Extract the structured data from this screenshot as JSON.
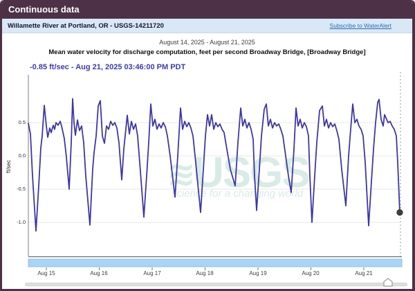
{
  "window": {
    "title": "Continuous data"
  },
  "site_bar": {
    "site_name": "Willamette River at Portland, OR - USGS-14211720",
    "subscribe_link": "Subscribe to WaterAlert"
  },
  "chart_header": {
    "date_range": "August 14, 2025 - August 21, 2025",
    "title": "Mean water velocity for discharge computation, feet per second Broadway Bridge, [Broadway Bridge]",
    "current_value": "-0.85 ft/sec - Aug 21, 2025 03:46:00 PM PDT"
  },
  "watermark": {
    "symbol": "≋",
    "text": "USGS",
    "tagline": "science for a changing world"
  },
  "colors": {
    "header_bg": "#4d3247",
    "site_bar_bg": "#d9e8f6",
    "link_blue": "#2a6db8",
    "accent_text": "#3a3ab8",
    "line": "#3c36a8",
    "grid": "#e7e7e7",
    "axis": "#9a9a9a",
    "watermark_green": "#d8ece5",
    "brush_blue": "#aad4f4",
    "end_dot": "#3f3f3f"
  },
  "chart_data": {
    "type": "line",
    "title": "Mean water velocity for discharge computation, feet per second Broadway Bridge, [Broadway Bridge]",
    "subtitle": "August 14, 2025 - August 21, 2025",
    "ylabel": "ft/sec",
    "xlabel": "",
    "ylim": [
      -1.5,
      1.2
    ],
    "grid": true,
    "legend": "none",
    "latest": {
      "value": -0.85,
      "units": "ft/sec",
      "time": "Aug 21, 2025 03:46:00 PM PDT"
    },
    "y_ticks": [
      {
        "label": "0.5",
        "value": 0.5
      },
      {
        "label": "0.0",
        "value": 0.0
      },
      {
        "label": "-0.5",
        "value": -0.5
      },
      {
        "label": "-1.0",
        "value": -1.0
      }
    ],
    "x_ticks": [
      {
        "label": "Aug 15"
      },
      {
        "label": "Aug 16"
      },
      {
        "label": "Aug 17"
      },
      {
        "label": "Aug 18"
      },
      {
        "label": "Aug 19"
      },
      {
        "label": "Aug 20"
      },
      {
        "label": "Aug 21"
      }
    ],
    "x_start": "August 14, 2025",
    "x_end": "August 21, 2025 03:46 PM PDT",
    "series": [
      {
        "name": "Mean water velocity (ft/sec)",
        "points": [
          [
            0.0,
            0.49
          ],
          [
            0.039,
            0.33
          ],
          [
            0.078,
            -0.3
          ],
          [
            0.144,
            -1.13
          ],
          [
            0.196,
            -0.45
          ],
          [
            0.235,
            0.12
          ],
          [
            0.261,
            0.3
          ],
          [
            0.301,
            0.76
          ],
          [
            0.34,
            0.45
          ],
          [
            0.366,
            0.28
          ],
          [
            0.405,
            0.42
          ],
          [
            0.431,
            0.35
          ],
          [
            0.471,
            0.46
          ],
          [
            0.497,
            0.4
          ],
          [
            0.523,
            0.5
          ],
          [
            0.562,
            0.46
          ],
          [
            0.601,
            0.52
          ],
          [
            0.628,
            0.45
          ],
          [
            0.68,
            0.26
          ],
          [
            0.719,
            -0.02
          ],
          [
            0.771,
            -0.5
          ],
          [
            0.81,
            0.2
          ],
          [
            0.837,
            0.86
          ],
          [
            0.863,
            0.5
          ],
          [
            0.889,
            0.31
          ],
          [
            0.928,
            0.54
          ],
          [
            0.967,
            0.38
          ],
          [
            1.007,
            0.45
          ],
          [
            1.046,
            0.2
          ],
          [
            1.085,
            -0.3
          ],
          [
            1.163,
            -1.04
          ],
          [
            1.216,
            -0.2
          ],
          [
            1.242,
            0.05
          ],
          [
            1.281,
            0.3
          ],
          [
            1.32,
            0.75
          ],
          [
            1.36,
            0.83
          ],
          [
            1.399,
            0.3
          ],
          [
            1.438,
            0.19
          ],
          [
            1.477,
            0.45
          ],
          [
            1.516,
            0.4
          ],
          [
            1.556,
            0.52
          ],
          [
            1.595,
            0.46
          ],
          [
            1.634,
            0.5
          ],
          [
            1.673,
            0.42
          ],
          [
            1.713,
            0.2
          ],
          [
            1.765,
            -0.36
          ],
          [
            1.804,
            0.1
          ],
          [
            1.869,
            0.61
          ],
          [
            1.909,
            0.33
          ],
          [
            1.948,
            0.52
          ],
          [
            1.987,
            0.4
          ],
          [
            2.026,
            0.48
          ],
          [
            2.065,
            0.3
          ],
          [
            2.105,
            -0.1
          ],
          [
            2.183,
            -0.92
          ],
          [
            2.235,
            -0.3
          ],
          [
            2.275,
            0.2
          ],
          [
            2.314,
            0.78
          ],
          [
            2.353,
            0.45
          ],
          [
            2.392,
            0.55
          ],
          [
            2.431,
            0.4
          ],
          [
            2.471,
            0.48
          ],
          [
            2.51,
            0.42
          ],
          [
            2.549,
            0.5
          ],
          [
            2.588,
            0.44
          ],
          [
            2.627,
            0.3
          ],
          [
            2.68,
            0.0
          ],
          [
            2.771,
            -0.62
          ],
          [
            2.824,
            0.0
          ],
          [
            2.876,
            0.72
          ],
          [
            2.915,
            0.4
          ],
          [
            2.954,
            0.52
          ],
          [
            2.993,
            0.44
          ],
          [
            3.033,
            0.5
          ],
          [
            3.072,
            0.42
          ],
          [
            3.111,
            0.3
          ],
          [
            3.163,
            -0.1
          ],
          [
            3.255,
            -0.85
          ],
          [
            3.307,
            -0.2
          ],
          [
            3.346,
            0.3
          ],
          [
            3.386,
            0.62
          ],
          [
            3.425,
            0.45
          ],
          [
            3.464,
            0.62
          ],
          [
            3.503,
            0.4
          ],
          [
            3.542,
            0.5
          ],
          [
            3.582,
            0.44
          ],
          [
            3.621,
            0.48
          ],
          [
            3.66,
            0.4
          ],
          [
            3.699,
            0.35
          ],
          [
            3.752,
            0.1
          ],
          [
            3.817,
            -0.2
          ],
          [
            3.908,
            -0.45
          ],
          [
            3.961,
            0.2
          ],
          [
            4.013,
            0.72
          ],
          [
            4.052,
            0.45
          ],
          [
            4.091,
            0.55
          ],
          [
            4.131,
            0.42
          ],
          [
            4.17,
            0.5
          ],
          [
            4.209,
            0.4
          ],
          [
            4.248,
            0.25
          ],
          [
            4.274,
            -0.3
          ],
          [
            4.314,
            -0.82
          ],
          [
            4.366,
            -0.2
          ],
          [
            4.405,
            0.3
          ],
          [
            4.457,
            0.7
          ],
          [
            4.497,
            0.78
          ],
          [
            4.536,
            0.45
          ],
          [
            4.575,
            0.55
          ],
          [
            4.614,
            0.42
          ],
          [
            4.653,
            0.5
          ],
          [
            4.693,
            0.45
          ],
          [
            4.732,
            0.48
          ],
          [
            4.771,
            0.4
          ],
          [
            4.81,
            0.3
          ],
          [
            4.863,
            0.0
          ],
          [
            4.915,
            -0.3
          ],
          [
            4.967,
            -0.55
          ],
          [
            5.019,
            0.1
          ],
          [
            5.059,
            0.72
          ],
          [
            5.098,
            0.45
          ],
          [
            5.137,
            0.55
          ],
          [
            5.176,
            0.42
          ],
          [
            5.216,
            0.5
          ],
          [
            5.255,
            0.44
          ],
          [
            5.294,
            0.3
          ],
          [
            5.32,
            -0.3
          ],
          [
            5.359,
            -1.0
          ],
          [
            5.412,
            -0.3
          ],
          [
            5.451,
            0.2
          ],
          [
            5.503,
            0.68
          ],
          [
            5.556,
            0.75
          ],
          [
            5.595,
            0.45
          ],
          [
            5.634,
            0.55
          ],
          [
            5.673,
            0.42
          ],
          [
            5.712,
            0.5
          ],
          [
            5.752,
            0.44
          ],
          [
            5.791,
            0.48
          ],
          [
            5.83,
            0.38
          ],
          [
            5.869,
            0.25
          ],
          [
            5.922,
            -0.2
          ],
          [
            6.0,
            -0.75
          ],
          [
            6.052,
            0.0
          ],
          [
            6.091,
            0.4
          ],
          [
            6.131,
            0.78
          ],
          [
            6.17,
            0.5
          ],
          [
            6.209,
            0.55
          ],
          [
            6.248,
            0.45
          ],
          [
            6.287,
            0.4
          ],
          [
            6.327,
            0.3
          ],
          [
            6.366,
            -0.1
          ],
          [
            6.431,
            -1.05
          ],
          [
            6.483,
            -0.4
          ],
          [
            6.523,
            0.1
          ],
          [
            6.562,
            0.5
          ],
          [
            6.601,
            0.8
          ],
          [
            6.627,
            0.85
          ],
          [
            6.667,
            0.55
          ],
          [
            6.706,
            0.45
          ],
          [
            6.732,
            0.62
          ],
          [
            6.771,
            0.55
          ],
          [
            6.797,
            0.5
          ],
          [
            6.836,
            0.52
          ],
          [
            6.876,
            0.45
          ],
          [
            6.915,
            0.4
          ],
          [
            6.954,
            0.3
          ],
          [
            6.98,
            -0.1
          ],
          [
            7.019,
            -0.85
          ]
        ]
      }
    ]
  }
}
